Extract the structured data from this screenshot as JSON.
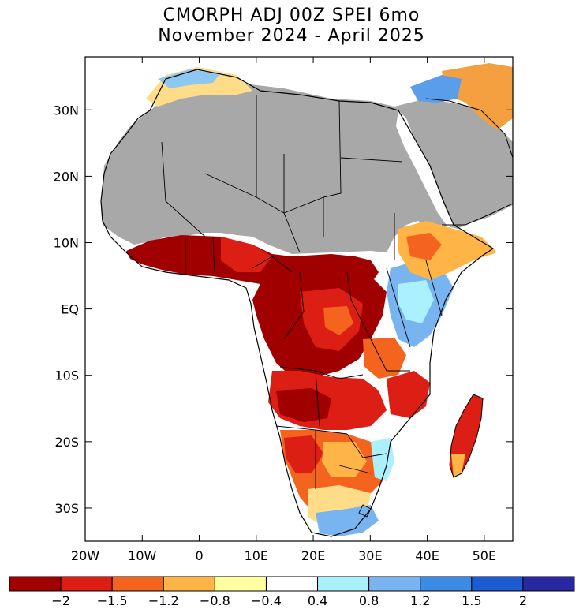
{
  "title": {
    "line1": "CMORPH ADJ 00Z SPEI 6mo",
    "line2": "November 2024 - April 2025"
  },
  "map": {
    "region": "Africa",
    "lon_range": [
      -20,
      55
    ],
    "lat_range": [
      -35,
      38
    ],
    "lat_labels": [
      "30N",
      "20N",
      "10N",
      "EQ",
      "10S",
      "20S",
      "30S"
    ],
    "lat_values": [
      30,
      20,
      10,
      0,
      -10,
      -20,
      -30
    ],
    "lon_labels": [
      "20W",
      "10W",
      "0",
      "10E",
      "20E",
      "30E",
      "40E",
      "50E"
    ],
    "lon_values": [
      -20,
      -10,
      0,
      10,
      20,
      30,
      40,
      50
    ],
    "no_data_color": "#a8a8a8",
    "land_masked_region": "Sahara / North Africa / Arabia (gray, no data)"
  },
  "colorbar": {
    "labels": [
      "−2",
      "−1.5",
      "−1.2",
      "−0.8",
      "−0.4",
      "0.4",
      "0.8",
      "1.2",
      "1.5",
      "2"
    ],
    "colors": [
      "#a00000",
      "#dc1e14",
      "#f5641e",
      "#ffb446",
      "#ffffa0",
      "#ffffff",
      "#aaf0ff",
      "#78b4f0",
      "#3c8ce6",
      "#1e5ad2",
      "#2828a0"
    ]
  }
}
